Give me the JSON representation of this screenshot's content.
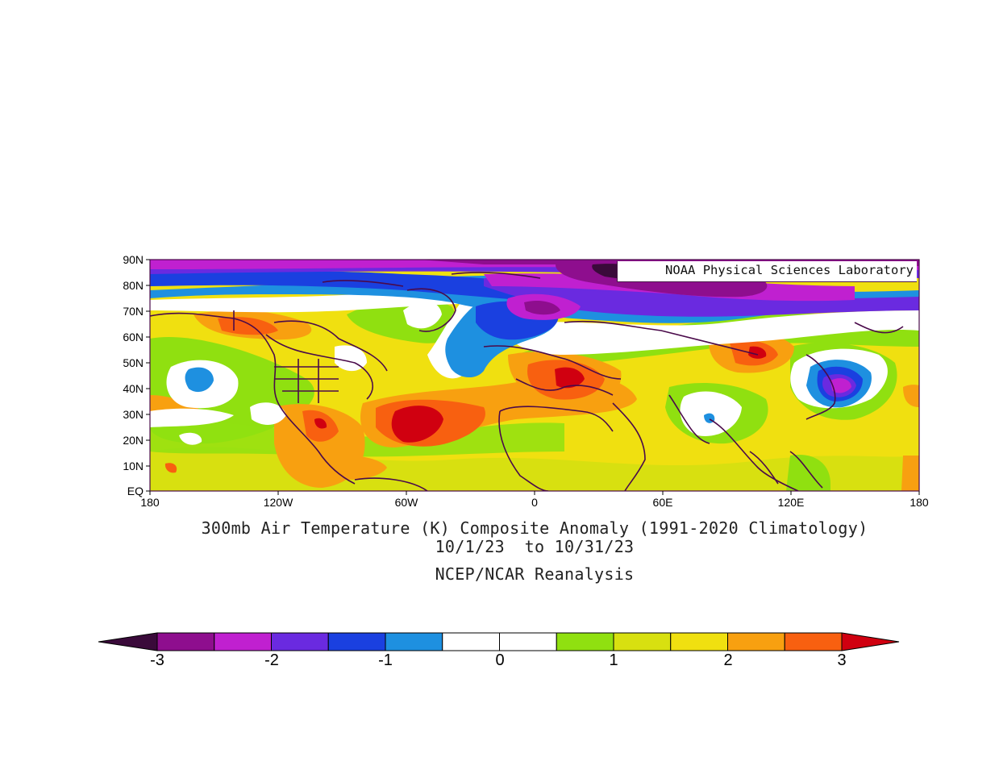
{
  "map": {
    "latitude_labels": [
      "90N",
      "80N",
      "70N",
      "60N",
      "50N",
      "40N",
      "30N",
      "20N",
      "10N",
      "EQ"
    ],
    "longitude_labels": [
      "180",
      "120W",
      "60W",
      "0",
      "60E",
      "120E",
      "180"
    ],
    "credit": "NOAA Physical Sciences Laboratory",
    "colors": {
      "min": "#3a0a3a",
      "deep_purple": "#8e0e8e",
      "magenta": "#c020d0",
      "violet": "#6a2ae0",
      "blue": "#1a40e0",
      "light_blue": "#1e90e0",
      "white": "#ffffff",
      "green": "#90e010",
      "yellow_green": "#d8e010",
      "yellow": "#f0e010",
      "orange": "#f8a010",
      "dark_orange": "#f86010",
      "red": "#d00010",
      "coastline": "#4a0a4a"
    }
  },
  "title": {
    "line1": "300mb Air Temperature (K) Composite Anomaly (1991-2020 Climatology)",
    "line2": "10/1/23  to 10/31/23",
    "line3": "NCEP/NCAR Reanalysis"
  },
  "colorbar": {
    "labels": [
      "-3",
      "-2",
      "-1",
      "0",
      "1",
      "2",
      "3"
    ],
    "segment_colors": [
      "#8e0e8e",
      "#c020d0",
      "#6a2ae0",
      "#1a40e0",
      "#1e90e0",
      "#ffffff",
      "#ffffff",
      "#90e010",
      "#d8e010",
      "#f0e010",
      "#f8a010",
      "#f86010"
    ],
    "min_arrow_color": "#3a0a3a",
    "max_arrow_color": "#d00010"
  }
}
